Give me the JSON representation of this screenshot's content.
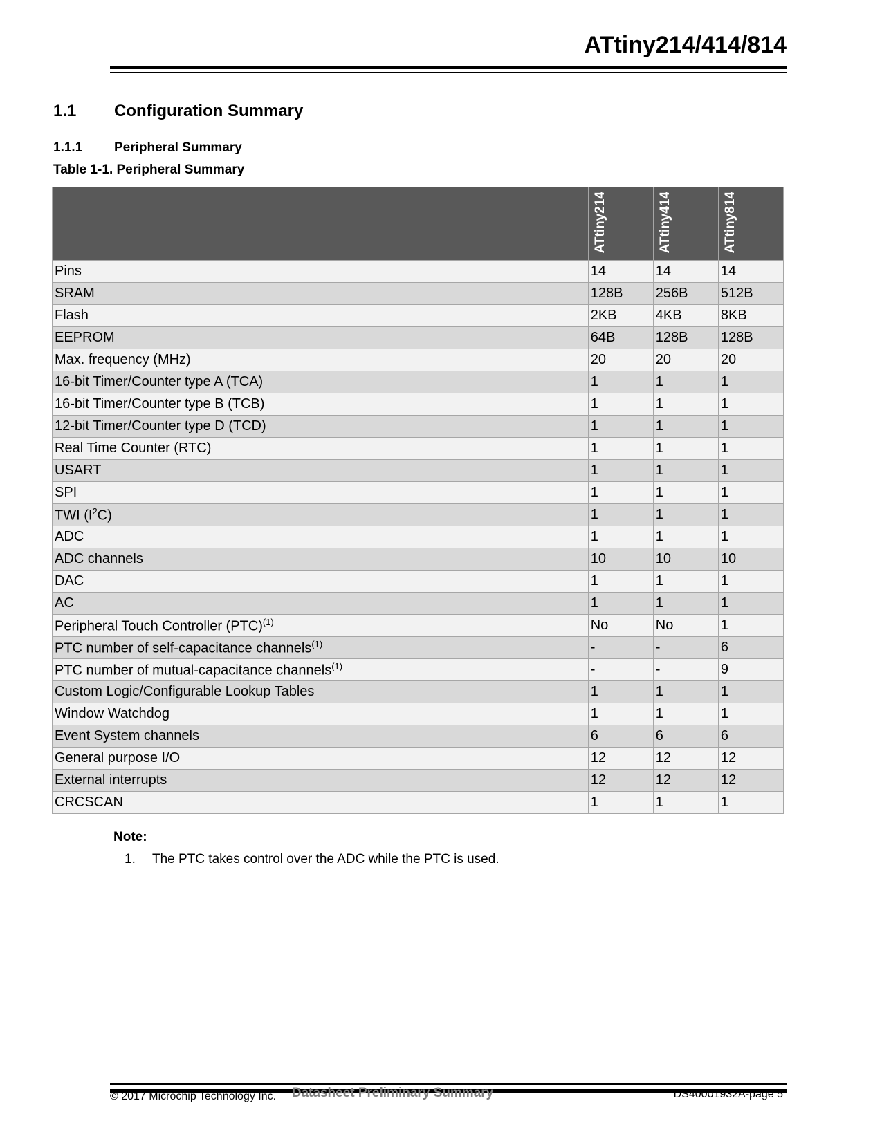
{
  "header": {
    "title": "ATtiny214/414/814"
  },
  "section": {
    "number": "1.1",
    "title": "Configuration Summary"
  },
  "subsection": {
    "number": "1.1.1",
    "title": "Peripheral Summary"
  },
  "table": {
    "caption": "Table 1-1.  Peripheral Summary",
    "columns": [
      "ATtiny214",
      "ATtiny414",
      "ATtiny814"
    ],
    "rows": [
      {
        "label": "Pins",
        "sup": "",
        "values": [
          "14",
          "14",
          "14"
        ]
      },
      {
        "label": "SRAM",
        "sup": "",
        "values": [
          "128B",
          "256B",
          "512B"
        ]
      },
      {
        "label": "Flash",
        "sup": "",
        "values": [
          "2KB",
          "4KB",
          "8KB"
        ]
      },
      {
        "label": "EEPROM",
        "sup": "",
        "values": [
          "64B",
          "128B",
          "128B"
        ]
      },
      {
        "label": "Max. frequency (MHz)",
        "sup": "",
        "values": [
          "20",
          "20",
          "20"
        ]
      },
      {
        "label": "16-bit Timer/Counter type A (TCA)",
        "sup": "",
        "values": [
          "1",
          "1",
          "1"
        ]
      },
      {
        "label": "16-bit Timer/Counter type B (TCB)",
        "sup": "",
        "values": [
          "1",
          "1",
          "1"
        ]
      },
      {
        "label": "12-bit Timer/Counter type D (TCD)",
        "sup": "",
        "values": [
          "1",
          "1",
          "1"
        ]
      },
      {
        "label": "Real Time Counter (RTC)",
        "sup": "",
        "values": [
          "1",
          "1",
          "1"
        ]
      },
      {
        "label": "USART",
        "sup": "",
        "values": [
          "1",
          "1",
          "1"
        ]
      },
      {
        "label": "SPI",
        "sup": "",
        "values": [
          "1",
          "1",
          "1"
        ]
      },
      {
        "label": "TWI (I",
        "sup": "2",
        "after": "C)",
        "values": [
          "1",
          "1",
          "1"
        ]
      },
      {
        "label": "ADC",
        "sup": "",
        "values": [
          "1",
          "1",
          "1"
        ]
      },
      {
        "label": "ADC channels",
        "sup": "",
        "values": [
          "10",
          "10",
          "10"
        ]
      },
      {
        "label": "DAC",
        "sup": "",
        "values": [
          "1",
          "1",
          "1"
        ]
      },
      {
        "label": "AC",
        "sup": "",
        "values": [
          "1",
          "1",
          "1"
        ]
      },
      {
        "label": "Peripheral Touch Controller (PTC)",
        "sup": "(1)",
        "values": [
          "No",
          "No",
          "1"
        ]
      },
      {
        "label": "PTC number of self-capacitance channels",
        "sup": "(1)",
        "values": [
          "-",
          "-",
          "6"
        ]
      },
      {
        "label": "PTC number of mutual-capacitance channels",
        "sup": "(1)",
        "values": [
          "-",
          "-",
          "9"
        ]
      },
      {
        "label": "Custom Logic/Configurable Lookup Tables",
        "sup": "",
        "values": [
          "1",
          "1",
          "1"
        ]
      },
      {
        "label": "Window Watchdog",
        "sup": "",
        "values": [
          "1",
          "1",
          "1"
        ]
      },
      {
        "label": "Event System channels",
        "sup": "",
        "values": [
          "6",
          "6",
          "6"
        ]
      },
      {
        "label": "General purpose I/O",
        "sup": "",
        "values": [
          "12",
          "12",
          "12"
        ]
      },
      {
        "label": "External interrupts",
        "sup": "",
        "values": [
          "12",
          "12",
          "12"
        ]
      },
      {
        "label": "CRCSCAN",
        "sup": "",
        "values": [
          "1",
          "1",
          "1"
        ]
      }
    ]
  },
  "note": {
    "label": "Note:",
    "items": [
      {
        "number": "1.",
        "text": "The PTC takes control over the ADC while the PTC is used."
      }
    ]
  },
  "footer": {
    "copyright": "© 2017 Microchip Technology Inc.",
    "center": "Datasheet Preliminary Summary",
    "page": "DS40001932A-page 5"
  }
}
